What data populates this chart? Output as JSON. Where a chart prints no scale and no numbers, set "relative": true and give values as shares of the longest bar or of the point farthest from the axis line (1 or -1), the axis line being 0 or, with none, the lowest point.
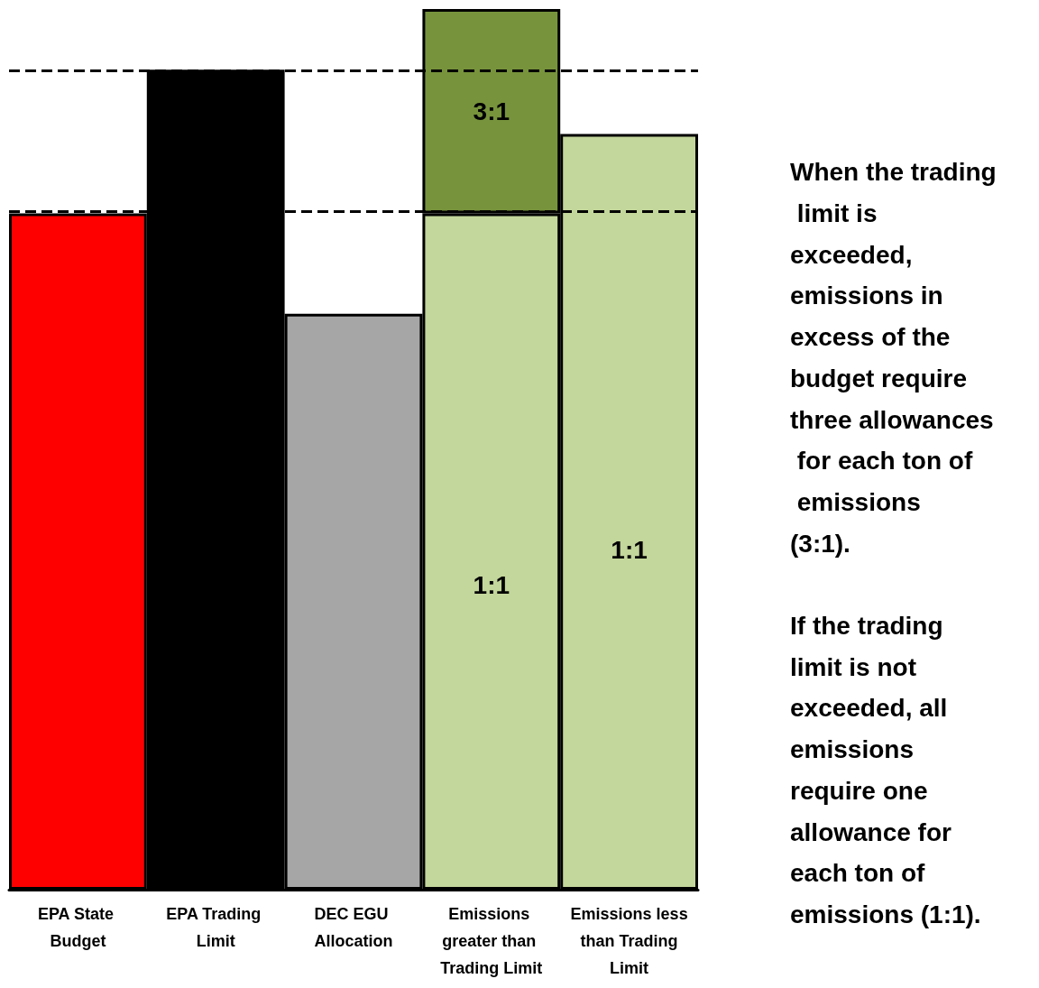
{
  "chart_data": {
    "type": "bar",
    "relative": true,
    "stacked": true,
    "categories": [
      "EPA State Budget",
      "EPA Trading Limit",
      "DEC EGU Allocation",
      "Emissions greater than Trading Limit",
      "Emissions less than Trading Limit"
    ],
    "series": [
      {
        "colors": [
          "#ff0000",
          "#000000",
          "#a6a6a6",
          "#c3d69b",
          "#c3d69b"
        ],
        "values": [
          0.768,
          0.931,
          0.654,
          0.768,
          0.858
        ]
      },
      {
        "color": "#77933c",
        "values": [
          null,
          null,
          null,
          0.232,
          null
        ]
      }
    ],
    "ref_lines": [
      {
        "axis": "y",
        "value": 0.931,
        "color": "#000000",
        "line_style": "dashed"
      },
      {
        "axis": "y",
        "value": 0.768,
        "color": "#000000",
        "line_style": "dashed"
      }
    ],
    "annotations": [
      "3:1",
      "1:1",
      "1:1",
      "When the trading limit is exceeded, emissions in excess of the budget require three allowances for each ton of emissions (3:1).",
      "If the trading limit is not exceeded, all emissions require one allowance for each ton of emissions (1:1)."
    ]
  }
}
